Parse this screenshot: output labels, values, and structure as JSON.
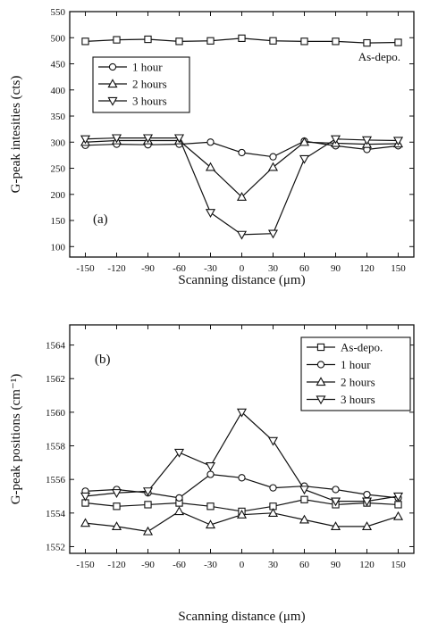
{
  "chart_data": [
    {
      "type": "line",
      "panel_label": "(a)",
      "annotation": "As-depo.",
      "xlabel": "Scanning distance (μm)",
      "ylabel": "G-peak intesities (cts)",
      "x": [
        -150,
        -120,
        -90,
        -60,
        -30,
        0,
        30,
        60,
        90,
        120,
        150
      ],
      "xticks": [
        "-150",
        "-120",
        "-90",
        "-60",
        "-30",
        "0",
        "30",
        "60",
        "90",
        "120",
        "150"
      ],
      "xlim": [
        -165,
        165
      ],
      "ylim": [
        80,
        550
      ],
      "yticks": [
        100,
        150,
        200,
        250,
        300,
        350,
        400,
        450,
        500,
        550
      ],
      "legend": "upper-left",
      "series": [
        {
          "name": "",
          "marker": "square",
          "in_legend": false,
          "values": [
            493,
            496,
            497,
            493,
            494,
            499,
            494,
            493,
            493,
            490,
            491
          ]
        },
        {
          "name": "1 hour",
          "marker": "circle",
          "in_legend": true,
          "values": [
            294,
            296,
            295,
            296,
            300,
            280,
            272,
            302,
            293,
            286,
            293
          ]
        },
        {
          "name": "2 hours",
          "marker": "triangle-up",
          "in_legend": true,
          "values": [
            300,
            303,
            303,
            303,
            252,
            195,
            252,
            300,
            298,
            296,
            297
          ]
        },
        {
          "name": "3 hours",
          "marker": "triangle-down",
          "in_legend": true,
          "values": [
            306,
            308,
            308,
            308,
            165,
            123,
            125,
            268,
            306,
            304,
            303
          ]
        }
      ]
    },
    {
      "type": "line",
      "panel_label": "(b)",
      "xlabel": "Scanning distance (μm)",
      "ylabel": "G-peak positions (cm⁻¹)",
      "x": [
        -150,
        -120,
        -90,
        -60,
        -30,
        0,
        30,
        60,
        90,
        120,
        150
      ],
      "xticks": [
        "-150",
        "-120",
        "-90",
        "-60",
        "-30",
        "0",
        "30",
        "60",
        "90",
        "120",
        "150"
      ],
      "xlim": [
        -165,
        165
      ],
      "ylim": [
        1551.6,
        1565.2
      ],
      "yticks": [
        1552,
        1554,
        1556,
        1558,
        1560,
        1562,
        1564
      ],
      "legend": "upper-right",
      "series": [
        {
          "name": "As-depo.",
          "marker": "square",
          "in_legend": true,
          "values": [
            1554.6,
            1554.4,
            1554.5,
            1554.6,
            1554.4,
            1554.1,
            1554.4,
            1554.8,
            1554.5,
            1554.6,
            1554.5
          ]
        },
        {
          "name": "1 hour",
          "marker": "circle",
          "in_legend": true,
          "values": [
            1555.3,
            1555.4,
            1555.2,
            1554.9,
            1556.3,
            1556.1,
            1555.5,
            1555.6,
            1555.4,
            1555.1,
            1554.9
          ]
        },
        {
          "name": "2 hours",
          "marker": "triangle-up",
          "in_legend": true,
          "values": [
            1553.4,
            1553.2,
            1552.9,
            1554.1,
            1553.3,
            1553.9,
            1554.0,
            1553.6,
            1553.2,
            1553.2,
            1553.8
          ]
        },
        {
          "name": "3 hours",
          "marker": "triangle-down",
          "in_legend": true,
          "values": [
            1555.0,
            1555.2,
            1555.3,
            1557.6,
            1556.8,
            1560.0,
            1558.3,
            1555.4,
            1554.7,
            1554.7,
            1555.0
          ]
        }
      ]
    }
  ]
}
